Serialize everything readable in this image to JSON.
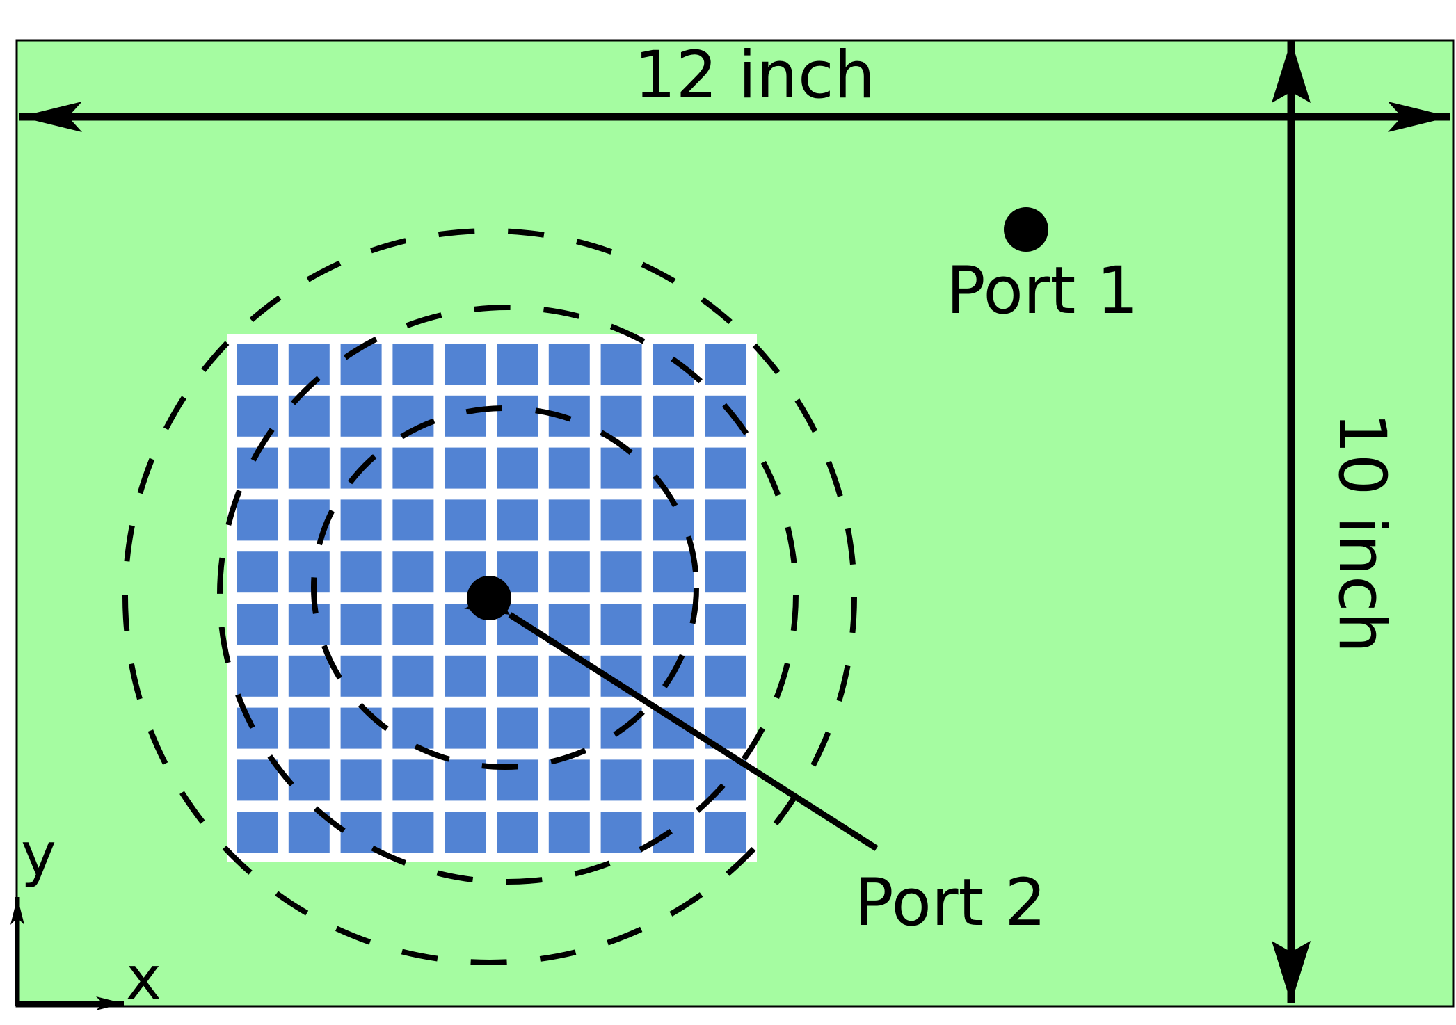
{
  "labels": {
    "width": "12 inch",
    "height": "10 inch",
    "port1": "Port 1",
    "port2": "Port 2",
    "axis_x": "x",
    "axis_y": "y"
  },
  "colors": {
    "board": "#a5fca1",
    "cell": "#5283d3",
    "grid_gap": "#ffffff",
    "ink": "#000000"
  },
  "grid": {
    "rows": 10,
    "cols": 10
  }
}
